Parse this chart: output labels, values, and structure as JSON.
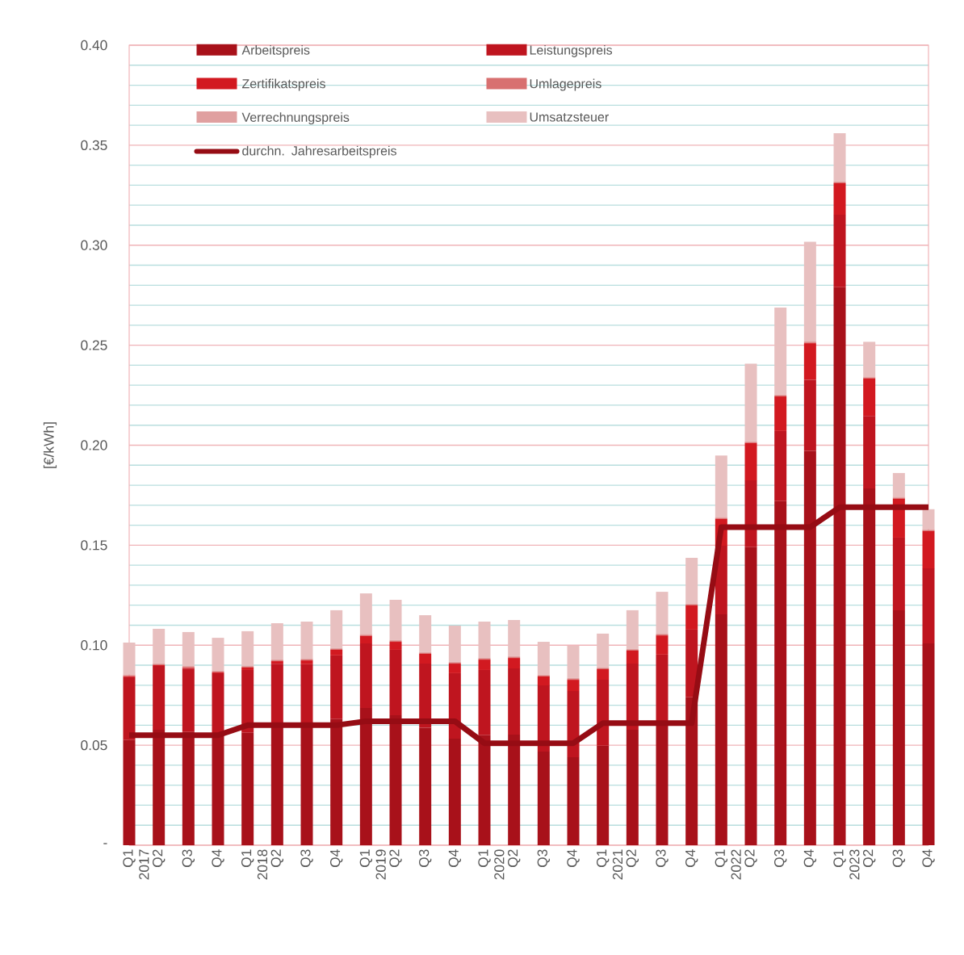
{
  "chart_data": {
    "type": "bar",
    "stacked": true,
    "ylabel": "[€/kWh]",
    "legend": "top",
    "grid": "y",
    "categories": [
      "Q1",
      "Q2",
      "Q3",
      "Q4",
      "Q1",
      "Q2",
      "Q3",
      "Q4",
      "Q1",
      "Q2",
      "Q3",
      "Q4",
      "Q1",
      "Q2",
      "Q3",
      "Q4",
      "Q1",
      "Q2",
      "Q3",
      "Q4",
      "Q1",
      "Q2",
      "Q3",
      "Q4",
      "Q1",
      "Q2",
      "Q3",
      "Q4"
    ],
    "annotations": [
      "2017",
      "2018",
      "2019",
      "2020",
      "2021",
      "2022",
      "2023"
    ],
    "ylim": [
      0,
      0.4
    ],
    "yticks": [
      {
        "value": 0,
        "label": "-"
      },
      0.05,
      {
        "value": 0.1,
        "label": "0.10"
      },
      0.15,
      {
        "value": 0.2,
        "label": "0.20"
      },
      0.25,
      {
        "value": 0.3,
        "label": "0.30"
      },
      0.35,
      {
        "value": 0.4,
        "label": "0.40"
      }
    ],
    "series": [
      {
        "name": "Arbeitspreis",
        "color": "#a8111a",
        "values": [
          0.0526,
          0.0577,
          0.0566,
          0.056,
          0.0562,
          0.06,
          0.06,
          0.0631,
          0.0686,
          0.065,
          0.0587,
          0.0533,
          0.055,
          0.0553,
          0.0468,
          0.044,
          0.0497,
          0.0577,
          0.061,
          0.074,
          0.1154,
          0.149,
          0.172,
          0.1972,
          0.279,
          0.1784,
          0.1175,
          0.1009
        ]
      },
      {
        "name": "Leistungspreis",
        "color": "#bf151f",
        "values": [
          0.0314,
          0.0319,
          0.0317,
          0.03,
          0.0314,
          0.0307,
          0.0305,
          0.0318,
          0.0323,
          0.0327,
          0.0321,
          0.0327,
          0.0326,
          0.0331,
          0.0331,
          0.0331,
          0.033,
          0.0331,
          0.0343,
          0.0338,
          0.0343,
          0.0334,
          0.0351,
          0.0355,
          0.0362,
          0.0362,
          0.0363,
          0.0375
        ]
      },
      {
        "name": "Zertifikatspreis",
        "color": "#d21920",
        "values": [
          0.0005,
          0.0004,
          0.0004,
          0.0004,
          0.0012,
          0.0013,
          0.0019,
          0.0028,
          0.0038,
          0.004,
          0.0049,
          0.0048,
          0.0052,
          0.0052,
          0.0045,
          0.0056,
          0.0053,
          0.0065,
          0.0096,
          0.0121,
          0.0135,
          0.0187,
          0.0173,
          0.0183,
          0.0158,
          0.0188,
          0.0195,
          0.0187
        ]
      },
      {
        "name": "Umlagepreis",
        "color": "#d87070",
        "values": [
          0.0004,
          0.0004,
          0.0004,
          0.0004,
          0.0004,
          0.0004,
          0.0004,
          0.0004,
          0.0004,
          0.0004,
          0.0004,
          0.0004,
          0.0004,
          0.0004,
          0.0004,
          0.0004,
          0.0004,
          0.0004,
          0.0004,
          0.0004,
          0.0004,
          0.0004,
          0.0004,
          0.0004,
          0.0004,
          0.0004,
          0.0004,
          0.0004
        ]
      },
      {
        "name": "Verrechnungspreis",
        "color": "#e0a0a0",
        "values": [
          0.0005,
          0.0005,
          0.0005,
          0.0005,
          0.0005,
          0.0005,
          0.0005,
          0.0005,
          0.0005,
          0.0005,
          0.0005,
          0.0005,
          0.0005,
          0.0005,
          0.0005,
          0.0005,
          0.0005,
          0.0005,
          0.0005,
          0.0005,
          0.0005,
          0.0005,
          0.0005,
          0.0005,
          0.0005,
          0.0005,
          0.0005,
          0.0005
        ]
      },
      {
        "name": "Umsatzsteuer",
        "color": "#e8c0c0",
        "values": [
          0.0159,
          0.0173,
          0.017,
          0.0164,
          0.0173,
          0.0181,
          0.0185,
          0.0189,
          0.0203,
          0.0201,
          0.0184,
          0.0181,
          0.0181,
          0.0181,
          0.0164,
          0.0161,
          0.0169,
          0.0193,
          0.0209,
          0.0229,
          0.0308,
          0.0388,
          0.0435,
          0.0498,
          0.0241,
          0.0174,
          0.0119,
          0.01
        ]
      },
      {
        "name": "durchn. Jahresarbeitspreis",
        "type": "line",
        "color": "#960c14",
        "values": [
          0.055,
          0.055,
          0.055,
          0.055,
          0.06,
          0.06,
          0.06,
          0.06,
          0.062,
          0.062,
          0.062,
          0.062,
          0.051,
          0.051,
          0.051,
          0.051,
          0.061,
          0.061,
          0.061,
          0.061,
          0.159,
          0.159,
          0.159,
          0.159,
          0.169,
          0.169,
          0.169,
          0.169
        ]
      }
    ]
  }
}
